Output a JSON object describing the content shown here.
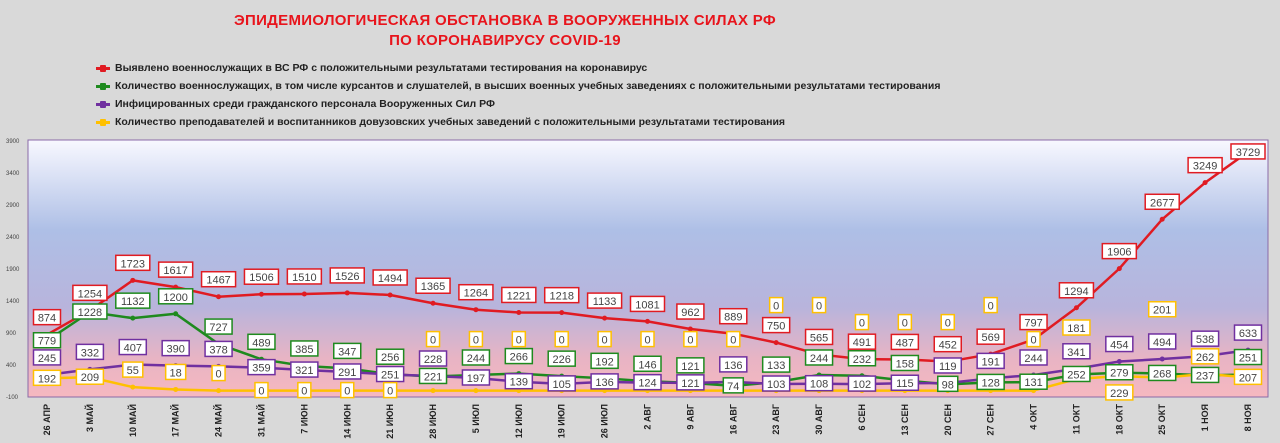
{
  "title_line1": "ЭПИДЕМИОЛОГИЧЕСКАЯ ОБСТАНОВКА В ВООРУЖЕННЫХ СИЛАХ РФ",
  "title_line2": "ПО КОРОНАВИРУСУ COVID-19",
  "chart_data": {
    "type": "line",
    "title": "ЭПИДЕМИОЛОГИЧЕСКАЯ ОБСТАНОВКА В ВООРУЖЕННЫХ СИЛАХ РФ ПО КОРОНАВИРУСУ COVID-19",
    "xlabel": "",
    "ylabel": "",
    "ylim": [
      -100,
      3900
    ],
    "yticks": [
      3900,
      3400,
      2900,
      2400,
      1900,
      1400,
      900,
      400,
      -100
    ],
    "grid": false,
    "legend_position": "top",
    "categories": [
      "26 АПР",
      "3 МАЙ",
      "10 МАЙ",
      "17 МАЙ",
      "24 МАЙ",
      "31 МАЙ",
      "7 ИЮН",
      "14 ИЮН",
      "21 ИЮН",
      "28 ИЮН",
      "5 ИЮЛ",
      "12 ИЮЛ",
      "19 ИЮЛ",
      "26 ИЮЛ",
      "2 АВГ",
      "9 АВГ",
      "16 АВГ",
      "23 АВГ",
      "30 АВГ",
      "6 СЕН",
      "13 СЕН",
      "20 СЕН",
      "27 СЕН",
      "4 ОКТ",
      "11 ОКТ",
      "18 ОКТ",
      "25 ОКТ",
      "1 НОЯ",
      "8 НОЯ"
    ],
    "series": [
      {
        "name": "Выявлено военнослужащих в ВС РФ с положительными результатами тестирования на коронавирус",
        "color": "#e01b22",
        "values": [
          874,
          1254,
          1723,
          1617,
          1467,
          1506,
          1510,
          1526,
          1494,
          1365,
          1264,
          1221,
          1218,
          1133,
          1081,
          962,
          889,
          750,
          565,
          491,
          487,
          452,
          569,
          797,
          1294,
          1906,
          2677,
          3249,
          3729
        ]
      },
      {
        "name": "Количество военнослужащих, в том числе курсантов и слушателей, в высших военных учебных заведениях с положительными результатами тестирования",
        "color": "#1e8a1e",
        "values": [
          779,
          1228,
          1132,
          1200,
          727,
          489,
          385,
          347,
          256,
          221,
          244,
          266,
          226,
          192,
          146,
          121,
          74,
          133,
          244,
          232,
          158,
          98,
          128,
          131,
          252,
          279,
          268,
          237,
          251
        ]
      },
      {
        "name": "Инфицированных среди гражданского персонала Вооруженных Сил РФ",
        "color": "#7030a0",
        "values": [
          245,
          332,
          407,
          390,
          378,
          359,
          321,
          291,
          251,
          228,
          197,
          139,
          105,
          136,
          124,
          121,
          136,
          103,
          108,
          102,
          115,
          119,
          191,
          244,
          341,
          454,
          494,
          538,
          633
        ]
      },
      {
        "name": "Количество преподавателей и воспитанников довузовских учебных заведений с положительными результатами тестирования",
        "color": "#ffc000",
        "values": [
          192,
          209,
          55,
          18,
          0,
          0,
          0,
          0,
          0,
          0,
          0,
          0,
          0,
          0,
          0,
          0,
          0,
          0,
          0,
          0,
          0,
          0,
          0,
          0,
          181,
          229,
          201,
          262,
          207
        ]
      }
    ]
  }
}
